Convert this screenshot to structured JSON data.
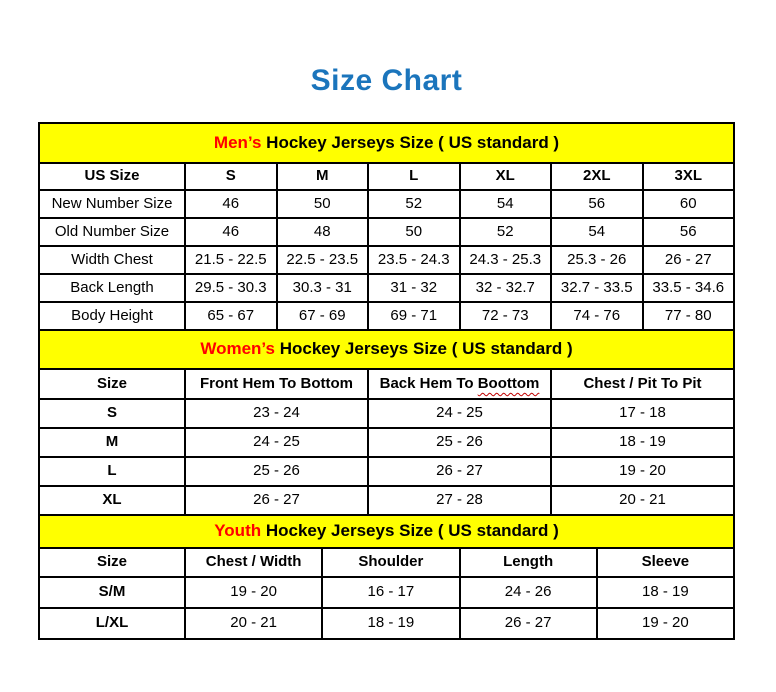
{
  "page": {
    "title": "Size Chart"
  },
  "colors": {
    "title_blue": "#1B75BC",
    "band_yellow": "#FFFF00",
    "accent_red": "#FF0000",
    "border_black": "#000000",
    "squiggle_red": "#C00000"
  },
  "sections": {
    "men": {
      "band": {
        "highlight": "Men’s",
        "rest": " Hockey Jerseys Size ( US standard )"
      },
      "columns": [
        "US Size",
        "S",
        "M",
        "L",
        "XL",
        "2XL",
        "3XL"
      ],
      "rows": [
        {
          "label": "New Number Size",
          "values": [
            "46",
            "50",
            "52",
            "54",
            "56",
            "60"
          ]
        },
        {
          "label": "Old Number Size",
          "values": [
            "46",
            "48",
            "50",
            "52",
            "54",
            "56"
          ]
        },
        {
          "label": "Width Chest",
          "values": [
            "21.5 - 22.5",
            "22.5 - 23.5",
            "23.5 - 24.3",
            "24.3 - 25.3",
            "25.3 - 26",
            "26 - 27"
          ]
        },
        {
          "label": "Back Length",
          "values": [
            "29.5 - 30.3",
            "30.3 - 31",
            "31 - 32",
            "32 - 32.7",
            "32.7 - 33.5",
            "33.5 - 34.6"
          ]
        },
        {
          "label": "Body Height",
          "values": [
            "65 - 67",
            "67 - 69",
            "69 - 71",
            "72 - 73",
            "74 - 76",
            "77 - 80"
          ]
        }
      ]
    },
    "women": {
      "band": {
        "highlight": "Women’s",
        "rest": " Hockey Jerseys Size ( US standard )"
      },
      "columns": [
        "Size",
        "Front Hem To Bottom",
        "Back Hem To Boottom",
        "Chest / Pit To Pit"
      ],
      "columns_split": {
        "pre": "Back Hem To ",
        "wavy": "Boottom"
      },
      "rows": [
        {
          "label": "S",
          "values": [
            "23 - 24",
            "24 - 25",
            "17 - 18"
          ]
        },
        {
          "label": "M",
          "values": [
            "24 - 25",
            "25 - 26",
            "18 - 19"
          ]
        },
        {
          "label": "L",
          "values": [
            "25 - 26",
            "26 - 27",
            "19 - 20"
          ]
        },
        {
          "label": "XL",
          "values": [
            "26 - 27",
            "27 - 28",
            "20 - 21"
          ]
        }
      ]
    },
    "youth": {
      "band": {
        "highlight": "Youth",
        "rest": " Hockey Jerseys Size ( US standard )"
      },
      "columns": [
        "Size",
        "Chest / Width",
        "Shoulder",
        "Length",
        "Sleeve"
      ],
      "rows": [
        {
          "label": "S/M",
          "values": [
            "19 - 20",
            "16 - 17",
            "24 - 26",
            "18 - 19"
          ]
        },
        {
          "label": "L/XL",
          "values": [
            "20 - 21",
            "18 - 19",
            "26 - 27",
            "19 - 20"
          ]
        }
      ]
    }
  }
}
